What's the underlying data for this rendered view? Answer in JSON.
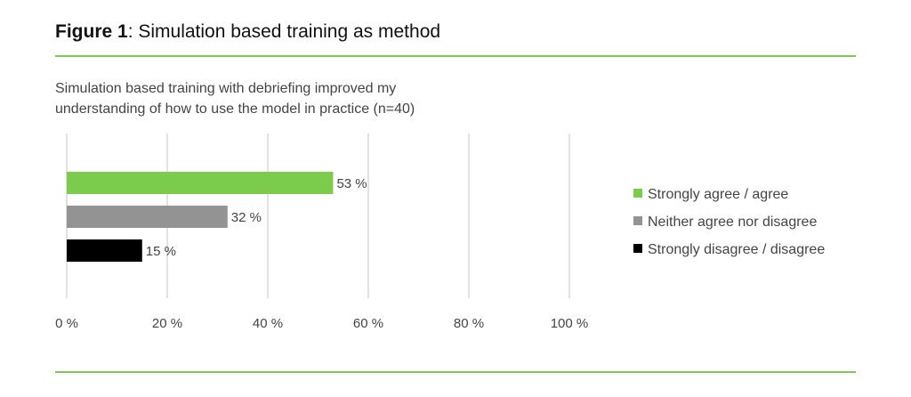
{
  "chart_data": {
    "type": "bar",
    "orientation": "horizontal",
    "title_bold": "Figure 1",
    "title_rest": ": Simulation based training as method",
    "subtitle": "Simulation based training with debriefing improved my understanding of how to use the model in practice (n=40)",
    "categories": [
      "Strongly agree / agree",
      "Neither agree nor disagree",
      "Strongly disagree / disagree"
    ],
    "values": [
      53,
      32,
      15
    ],
    "data_labels": [
      "53 %",
      "32 %",
      "15 %"
    ],
    "colors": [
      "#7ccb4c",
      "#939393",
      "#000000"
    ],
    "xlim": [
      0,
      100
    ],
    "xticks": [
      0,
      20,
      40,
      60,
      80,
      100
    ],
    "xtick_labels": [
      "0 %",
      "20 %",
      "40 %",
      "60 %",
      "80 %",
      "100 %"
    ],
    "grid": "vertical",
    "legend_placement": "right",
    "accent_color": "#7ccb4c"
  }
}
